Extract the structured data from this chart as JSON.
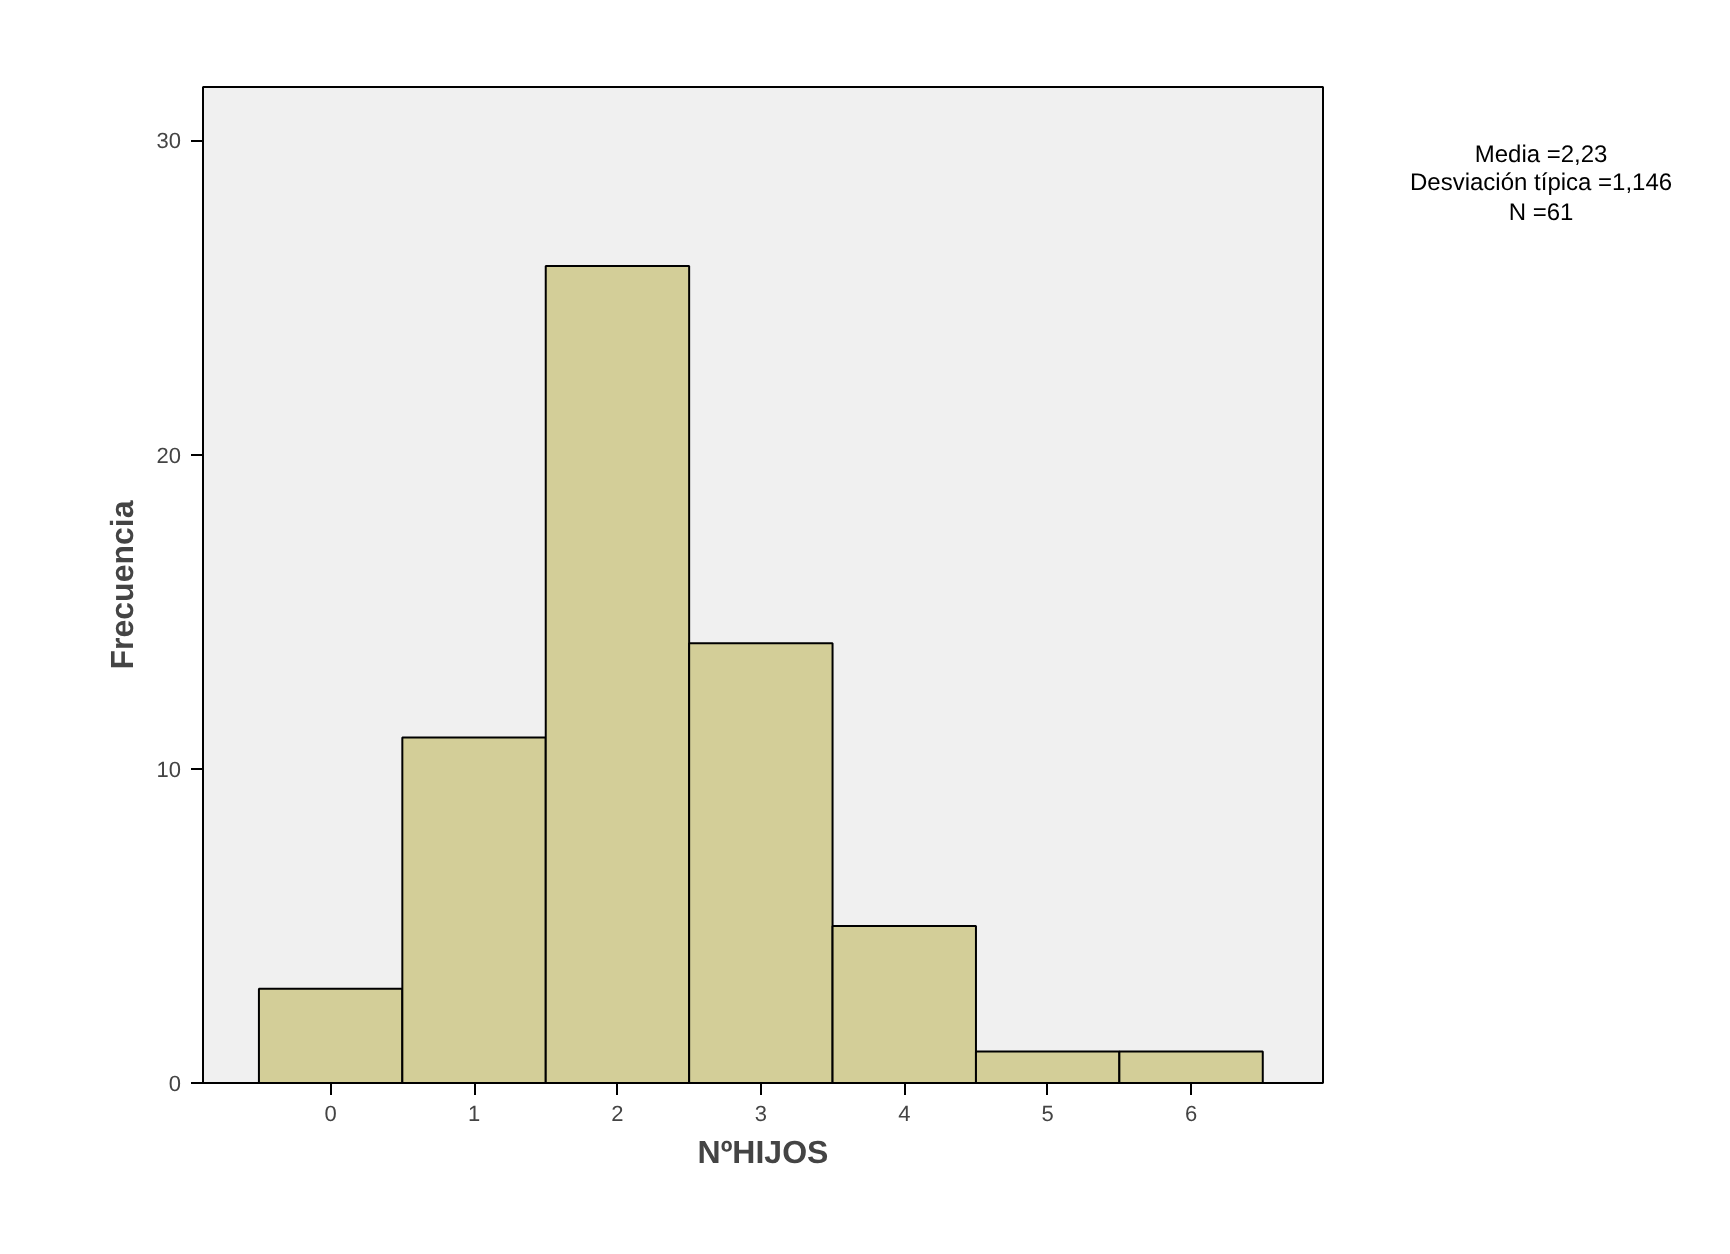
{
  "chart_data": {
    "type": "histogram",
    "xlabel": "NºHIJOS",
    "ylabel": "Frecuencia",
    "bins": [
      -0.5,
      0.5,
      1.5,
      2.5,
      3.5,
      4.5,
      5.5,
      6.5
    ],
    "values": [
      3,
      11,
      26,
      14,
      5,
      1,
      1
    ],
    "color": "#d3ce98",
    "xlim": [
      -0.89,
      6.92
    ],
    "xticks": [
      0,
      1,
      2,
      3,
      4,
      5,
      6
    ],
    "ylim": [
      0,
      31.7
    ],
    "yticks": [
      0,
      10,
      20,
      30
    ],
    "grid": false,
    "annotations": [
      "Media =2,23",
      "Desviación típica =1,146",
      "N =61"
    ]
  }
}
